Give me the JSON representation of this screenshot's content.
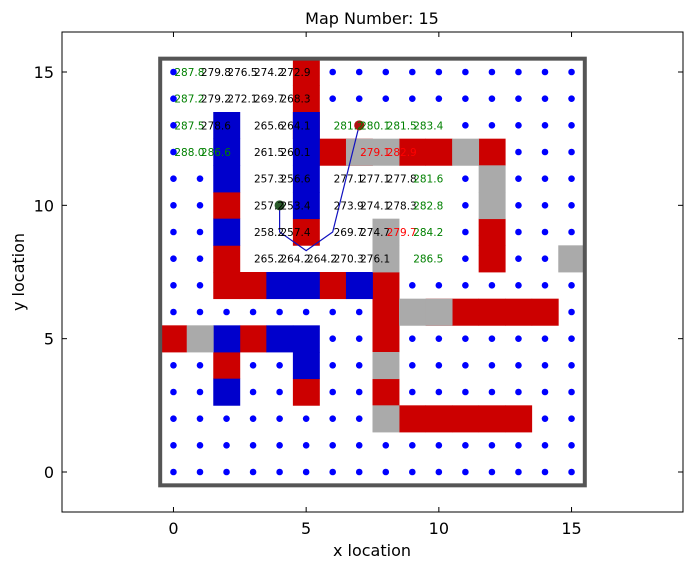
{
  "chart_data": {
    "type": "scatter",
    "title": "Map Number: 15",
    "xlabel": "x location",
    "ylabel": "y location",
    "xlim": [
      -4.2,
      19.2
    ],
    "ylim": [
      -1.5,
      16.5
    ],
    "xticks": [
      0,
      5,
      10,
      15
    ],
    "yticks": [
      0,
      5,
      10,
      15
    ],
    "boundary": {
      "x0": -0.5,
      "y0": -0.5,
      "x1": 15.5,
      "y1": 15.5,
      "color": "#555555"
    },
    "colors": {
      "dot": "#0000ff",
      "red": "#cc0000",
      "blue": "#0000cc",
      "gray": "#aaaaaa",
      "label_black": "#000000",
      "label_green": "#008000",
      "label_red": "#ff0000",
      "path": "#1010c0",
      "start": "#2a5a2a",
      "goal": "#b01010"
    },
    "cells": {
      "red": [
        [
          5,
          15
        ],
        [
          5,
          14
        ],
        [
          5,
          13
        ],
        [
          6,
          12
        ],
        [
          7,
          12
        ],
        [
          9,
          12
        ],
        [
          10,
          12
        ],
        [
          12,
          12
        ],
        [
          2,
          10
        ],
        [
          2,
          8
        ],
        [
          2,
          7
        ],
        [
          3,
          7
        ],
        [
          5,
          9
        ],
        [
          6,
          7
        ],
        [
          8,
          7
        ],
        [
          8,
          6
        ],
        [
          8,
          5
        ],
        [
          12,
          9
        ],
        [
          12,
          8
        ],
        [
          10,
          6
        ],
        [
          11,
          6
        ],
        [
          12,
          6
        ],
        [
          13,
          6
        ],
        [
          14,
          6
        ],
        [
          0,
          5
        ],
        [
          3,
          5
        ],
        [
          2,
          4
        ],
        [
          5,
          3
        ],
        [
          8,
          3
        ],
        [
          9,
          2
        ],
        [
          10,
          2
        ],
        [
          11,
          2
        ],
        [
          12,
          2
        ],
        [
          13,
          2
        ]
      ],
      "blue": [
        [
          5,
          13
        ],
        [
          2,
          13
        ],
        [
          2,
          12
        ],
        [
          2,
          11
        ],
        [
          5,
          12
        ],
        [
          5,
          11
        ],
        [
          5,
          10
        ],
        [
          2,
          9
        ],
        [
          4,
          7
        ],
        [
          5,
          7
        ],
        [
          7,
          7
        ],
        [
          2,
          5
        ],
        [
          4,
          5
        ],
        [
          5,
          5
        ],
        [
          5,
          4
        ],
        [
          2,
          3
        ]
      ],
      "gray": [
        [
          7,
          12
        ],
        [
          8,
          12
        ],
        [
          11,
          12
        ],
        [
          12,
          11
        ],
        [
          12,
          10
        ],
        [
          8,
          9
        ],
        [
          8,
          8
        ],
        [
          15,
          8
        ],
        [
          9,
          6
        ],
        [
          10,
          6
        ],
        [
          1,
          5
        ],
        [
          8,
          4
        ],
        [
          8,
          2
        ]
      ]
    },
    "open_region": [
      [
        1,
        15
      ],
      [
        2,
        15
      ],
      [
        3,
        15
      ],
      [
        4,
        15
      ],
      [
        1,
        14
      ],
      [
        2,
        14
      ],
      [
        3,
        14
      ],
      [
        4,
        14
      ],
      [
        1,
        13
      ],
      [
        3,
        13
      ],
      [
        4,
        13
      ],
      [
        1,
        12
      ],
      [
        3,
        12
      ],
      [
        4,
        12
      ],
      [
        3,
        11
      ],
      [
        4,
        11
      ],
      [
        6,
        11
      ],
      [
        7,
        11
      ],
      [
        8,
        11
      ],
      [
        9,
        11
      ],
      [
        10,
        11
      ],
      [
        3,
        10
      ],
      [
        4,
        10
      ],
      [
        6,
        10
      ],
      [
        7,
        10
      ],
      [
        8,
        10
      ],
      [
        9,
        10
      ],
      [
        10,
        10
      ],
      [
        3,
        9
      ],
      [
        4,
        9
      ],
      [
        6,
        9
      ],
      [
        7,
        9
      ],
      [
        9,
        9
      ],
      [
        10,
        9
      ],
      [
        3,
        8
      ],
      [
        4,
        8
      ],
      [
        5,
        8
      ],
      [
        6,
        8
      ],
      [
        7,
        8
      ],
      [
        9,
        8
      ],
      [
        10,
        8
      ],
      [
        6,
        13
      ],
      [
        7,
        13
      ],
      [
        8,
        13
      ],
      [
        9,
        13
      ],
      [
        10,
        13
      ]
    ],
    "labels": [
      {
        "x": 0.6,
        "y": 15,
        "t": "287.8",
        "c": "green"
      },
      {
        "x": 1.6,
        "y": 15,
        "t": "279.8",
        "c": "black"
      },
      {
        "x": 2.6,
        "y": 15,
        "t": "276.5",
        "c": "black"
      },
      {
        "x": 3.6,
        "y": 15,
        "t": "274.2",
        "c": "black"
      },
      {
        "x": 4.6,
        "y": 15,
        "t": "272.9",
        "c": "black"
      },
      {
        "x": 0.6,
        "y": 14,
        "t": "287.2",
        "c": "green"
      },
      {
        "x": 1.6,
        "y": 14,
        "t": "279.2",
        "c": "black"
      },
      {
        "x": 2.6,
        "y": 14,
        "t": "272.1",
        "c": "black"
      },
      {
        "x": 3.6,
        "y": 14,
        "t": "269.7",
        "c": "black"
      },
      {
        "x": 4.6,
        "y": 14,
        "t": "268.3",
        "c": "black"
      },
      {
        "x": 0.6,
        "y": 13,
        "t": "287.5",
        "c": "green"
      },
      {
        "x": 1.6,
        "y": 13,
        "t": "278.6",
        "c": "black"
      },
      {
        "x": 3.6,
        "y": 13,
        "t": "265.6",
        "c": "black"
      },
      {
        "x": 4.6,
        "y": 13,
        "t": "264.1",
        "c": "black"
      },
      {
        "x": 6.6,
        "y": 13,
        "t": "281.2",
        "c": "green"
      },
      {
        "x": 7.6,
        "y": 13,
        "t": "280.1",
        "c": "green"
      },
      {
        "x": 8.6,
        "y": 13,
        "t": "281.5",
        "c": "green"
      },
      {
        "x": 9.6,
        "y": 13,
        "t": "283.4",
        "c": "green"
      },
      {
        "x": 0.6,
        "y": 12,
        "t": "288.0",
        "c": "green"
      },
      {
        "x": 1.6,
        "y": 12,
        "t": "286.6",
        "c": "green"
      },
      {
        "x": 3.6,
        "y": 12,
        "t": "261.5",
        "c": "black"
      },
      {
        "x": 4.6,
        "y": 12,
        "t": "260.1",
        "c": "black"
      },
      {
        "x": 7.6,
        "y": 12,
        "t": "279.1",
        "c": "red"
      },
      {
        "x": 8.6,
        "y": 12,
        "t": "282.9",
        "c": "red"
      },
      {
        "x": 3.6,
        "y": 11,
        "t": "257.3",
        "c": "black"
      },
      {
        "x": 4.6,
        "y": 11,
        "t": "256.6",
        "c": "black"
      },
      {
        "x": 6.6,
        "y": 11,
        "t": "277.1",
        "c": "black"
      },
      {
        "x": 7.6,
        "y": 11,
        "t": "277.1",
        "c": "black"
      },
      {
        "x": 8.6,
        "y": 11,
        "t": "277.8",
        "c": "black"
      },
      {
        "x": 9.6,
        "y": 11,
        "t": "281.6",
        "c": "green"
      },
      {
        "x": 3.6,
        "y": 10,
        "t": "257.2",
        "c": "black"
      },
      {
        "x": 4.6,
        "y": 10,
        "t": "253.4",
        "c": "black"
      },
      {
        "x": 6.6,
        "y": 10,
        "t": "273.9",
        "c": "black"
      },
      {
        "x": 7.6,
        "y": 10,
        "t": "274.1",
        "c": "black"
      },
      {
        "x": 8.6,
        "y": 10,
        "t": "278.3",
        "c": "black"
      },
      {
        "x": 9.6,
        "y": 10,
        "t": "282.8",
        "c": "green"
      },
      {
        "x": 3.6,
        "y": 9,
        "t": "258.2",
        "c": "black"
      },
      {
        "x": 4.6,
        "y": 9,
        "t": "257.4",
        "c": "black"
      },
      {
        "x": 6.6,
        "y": 9,
        "t": "269.7",
        "c": "black"
      },
      {
        "x": 7.6,
        "y": 9,
        "t": "274.7",
        "c": "black"
      },
      {
        "x": 8.6,
        "y": 9,
        "t": "279.7",
        "c": "red"
      },
      {
        "x": 9.6,
        "y": 9,
        "t": "284.2",
        "c": "green"
      },
      {
        "x": 3.6,
        "y": 8,
        "t": "265.2",
        "c": "black"
      },
      {
        "x": 4.6,
        "y": 8,
        "t": "264.2",
        "c": "black"
      },
      {
        "x": 5.6,
        "y": 8,
        "t": "264.2",
        "c": "black"
      },
      {
        "x": 6.6,
        "y": 8,
        "t": "270.3",
        "c": "black"
      },
      {
        "x": 7.6,
        "y": 8,
        "t": "276.1",
        "c": "black"
      },
      {
        "x": 9.6,
        "y": 8,
        "t": "286.5",
        "c": "green"
      }
    ],
    "path": [
      [
        4,
        10
      ],
      [
        4,
        9
      ],
      [
        5,
        8.3
      ],
      [
        6,
        9
      ],
      [
        7,
        13
      ]
    ],
    "start": [
      4,
      10
    ],
    "goal": [
      7,
      13
    ]
  }
}
